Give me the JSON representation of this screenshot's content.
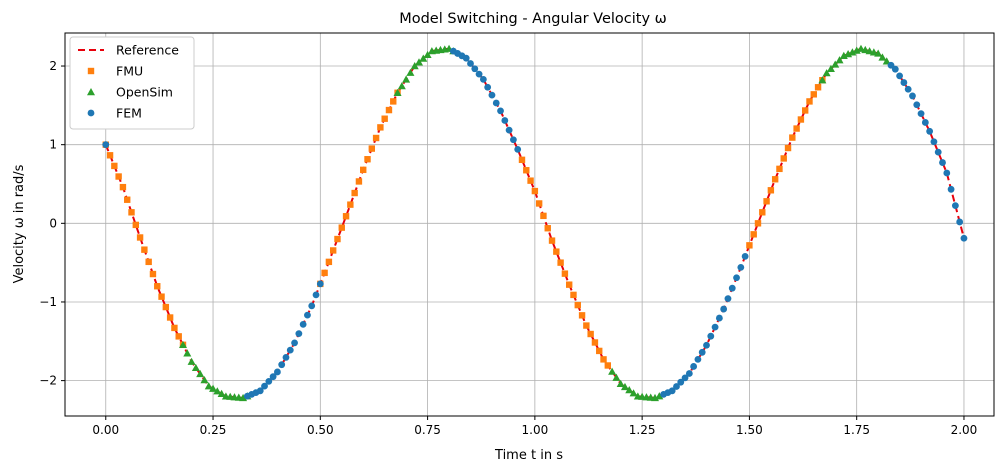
{
  "chart_data": {
    "type": "line",
    "title": "Model Switching - Angular Velocity ω",
    "xlabel": "Time t in s",
    "ylabel": "Velocity ω in rad/s",
    "xlim": [
      -0.095,
      2.07
    ],
    "ylim": [
      -2.45,
      2.42
    ],
    "xticks": [
      0.0,
      0.25,
      0.5,
      0.75,
      1.0,
      1.25,
      1.5,
      1.75,
      2.0
    ],
    "xtick_labels": [
      "0.00",
      "0.25",
      "0.50",
      "0.75",
      "1.00",
      "1.25",
      "1.50",
      "1.75",
      "2.00"
    ],
    "yticks": [
      -2,
      -1,
      0,
      1,
      2
    ],
    "ytick_labels": [
      "−2",
      "−1",
      "0",
      "1",
      "2"
    ],
    "grid": true,
    "legend_position": "top-left",
    "sample_step": 0.01,
    "series": [
      {
        "name": "Reference",
        "style": "dashed-line",
        "color": "#e8000b",
        "x": [
          0.0,
          0.04,
          0.08,
          0.12,
          0.16,
          0.2,
          0.24,
          0.28,
          0.32,
          0.36,
          0.4,
          0.44,
          0.48,
          0.52,
          0.56,
          0.6,
          0.64,
          0.68,
          0.72,
          0.76,
          0.8,
          0.84,
          0.88,
          0.92,
          0.96,
          1.0,
          1.04,
          1.08,
          1.12,
          1.16,
          1.2,
          1.24,
          1.28,
          1.32,
          1.36,
          1.4,
          1.44,
          1.48,
          1.52,
          1.56,
          1.6,
          1.64,
          1.68,
          1.72,
          1.76,
          1.8,
          1.84,
          1.88,
          1.92,
          1.96,
          2.0
        ],
        "y": [
          1.0,
          0.46,
          -0.18,
          -0.8,
          -1.33,
          -1.76,
          -2.07,
          -2.2,
          -2.22,
          -2.13,
          -1.89,
          -1.52,
          -1.05,
          -0.49,
          0.09,
          0.68,
          1.22,
          1.66,
          2.0,
          2.19,
          2.22,
          2.1,
          1.83,
          1.43,
          0.94,
          0.41,
          -0.22,
          -0.78,
          -1.3,
          -1.73,
          -2.04,
          -2.2,
          -2.22,
          -2.13,
          -1.91,
          -1.55,
          -1.09,
          -0.56,
          0.0,
          0.56,
          1.09,
          1.55,
          1.91,
          2.13,
          2.22,
          2.16,
          1.96,
          1.62,
          1.17,
          0.64,
          -0.19
        ]
      },
      {
        "name": "FMU",
        "style": "square-markers",
        "color": "#ff7f0e",
        "segments": [
          [
            0.0,
            0.18
          ],
          [
            0.5,
            0.68
          ],
          [
            0.97,
            1.17
          ],
          [
            1.5,
            1.67
          ]
        ]
      },
      {
        "name": "OpenSim",
        "style": "triangle-markers",
        "color": "#2ca02c",
        "segments": [
          [
            0.18,
            0.33
          ],
          [
            0.68,
            0.81
          ],
          [
            1.18,
            1.29
          ],
          [
            1.67,
            1.82
          ]
        ]
      },
      {
        "name": "FEM",
        "style": "circle-markers",
        "color": "#1f77b4",
        "segments": [
          [
            0.0,
            0.0
          ],
          [
            0.33,
            0.5
          ],
          [
            0.81,
            0.96
          ],
          [
            1.3,
            1.49
          ],
          [
            1.83,
            2.0
          ]
        ]
      }
    ]
  }
}
